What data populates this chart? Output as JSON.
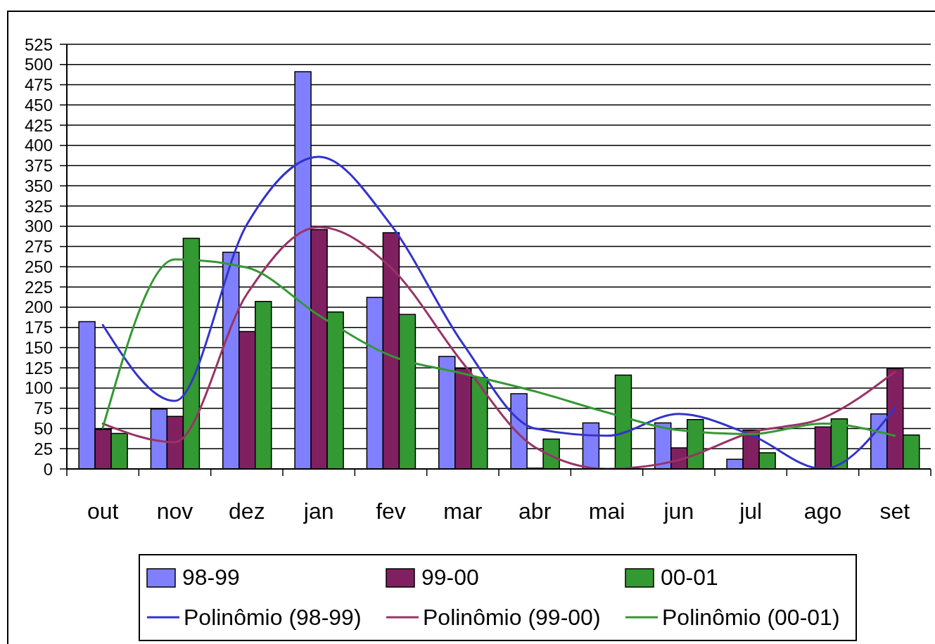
{
  "chart_data": {
    "type": "bar",
    "categories": [
      "out",
      "nov",
      "dez",
      "jan",
      "fev",
      "mar",
      "abr",
      "mai",
      "jun",
      "jul",
      "ago",
      "set"
    ],
    "series": [
      {
        "name": "98-99",
        "color": "#8080ff",
        "values": [
          182,
          74,
          268,
          491,
          212,
          139,
          93,
          57,
          57,
          12,
          null,
          68
        ]
      },
      {
        "name": "99-00",
        "color": "#802060",
        "values": [
          49,
          65,
          170,
          296,
          292,
          124,
          1,
          null,
          26,
          48,
          52,
          124
        ]
      },
      {
        "name": "00-01",
        "color": "#339933",
        "values": [
          44,
          285,
          207,
          194,
          191,
          113,
          37,
          116,
          61,
          20,
          62,
          42
        ]
      },
      {
        "name": "Polinômio (98-99)",
        "type": "line",
        "color": "#3333cc",
        "values": [
          178,
          84,
          302,
          386,
          302,
          155,
          50,
          41,
          68,
          42,
          0,
          75
        ]
      },
      {
        "name": "Polinômio (99-00)",
        "type": "line",
        "color": "#993366",
        "values": [
          56,
          33,
          216,
          299,
          249,
          131,
          27,
          0,
          11,
          45,
          63,
          120
        ]
      },
      {
        "name": "Polinômio (00-01)",
        "type": "line",
        "color": "#339933",
        "values": [
          51,
          259,
          249,
          190,
          140,
          118,
          96,
          70,
          48,
          43,
          56,
          41
        ]
      }
    ],
    "ylim": [
      0,
      525
    ],
    "yticks": [
      0,
      25,
      50,
      75,
      100,
      125,
      150,
      175,
      200,
      225,
      250,
      275,
      300,
      325,
      350,
      375,
      400,
      425,
      450,
      475,
      500,
      525
    ],
    "grid": "y",
    "legend": "bottom"
  }
}
